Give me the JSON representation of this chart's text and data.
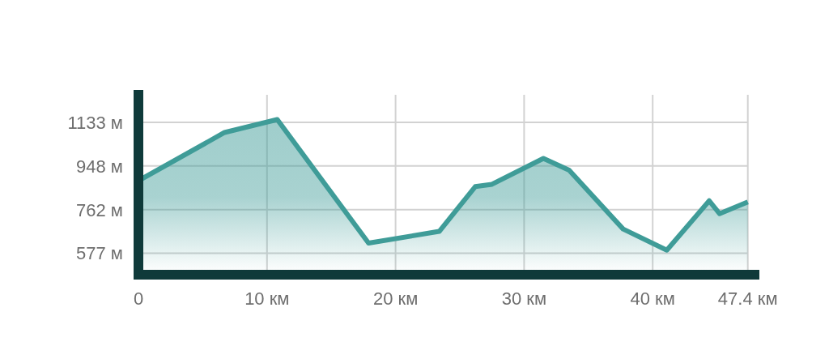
{
  "chart_data": {
    "type": "area",
    "x": [
      0,
      6.7,
      10.8,
      17.9,
      23.4,
      26.2,
      27.5,
      31.5,
      33.5,
      37.7,
      41.1,
      44.4,
      45.2,
      47.4
    ],
    "values": [
      885,
      1090,
      1145,
      620,
      670,
      860,
      870,
      980,
      930,
      680,
      590,
      800,
      745,
      795
    ],
    "color": "#3f9c98",
    "xlim": [
      0,
      48.3
    ],
    "ylim": [
      486,
      1250
    ],
    "xticks": [
      {
        "value": 0,
        "label": "0"
      },
      {
        "value": 10,
        "label": "10 км"
      },
      {
        "value": 20,
        "label": "20 км"
      },
      {
        "value": 30,
        "label": "30 км"
      },
      {
        "value": 40,
        "label": "40 км"
      },
      {
        "value": 47.4,
        "label": "47.4 км"
      }
    ],
    "yticks": [
      {
        "value": 577,
        "label": "577 м"
      },
      {
        "value": 762,
        "label": "762 м"
      },
      {
        "value": 948,
        "label": "948 м"
      },
      {
        "value": 1133,
        "label": "1133 м"
      }
    ],
    "grid": true,
    "legend": false,
    "marker": "none",
    "line_style": "solid"
  }
}
